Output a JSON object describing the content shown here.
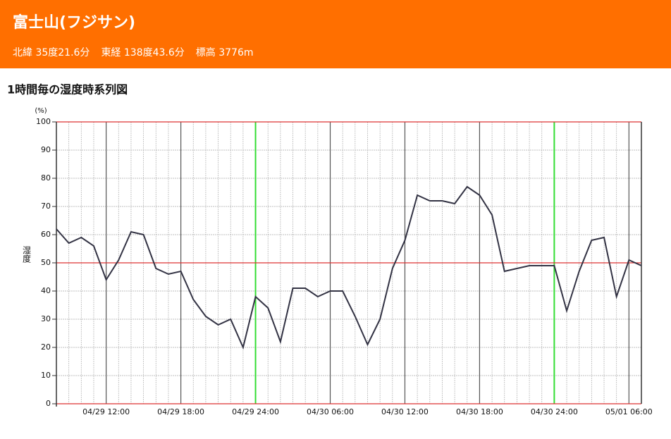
{
  "header": {
    "title": "富士山(フジサン)",
    "latitude": "北緯 35度21.6分",
    "longitude": "東経 138度43.6分",
    "elevation": "標高 3776m"
  },
  "chart_data": {
    "type": "line",
    "title": "1時間毎の湿度時系列図",
    "y_unit": "(%)",
    "ylabel": "湿度",
    "categories": [
      null,
      null,
      null,
      null,
      "04/29 12:00",
      null,
      null,
      null,
      null,
      null,
      "04/29 18:00",
      null,
      null,
      null,
      null,
      null,
      "04/29 24:00",
      null,
      null,
      null,
      null,
      null,
      "04/30 06:00",
      null,
      null,
      null,
      null,
      null,
      "04/30 12:00",
      null,
      null,
      null,
      null,
      null,
      "04/30 18:00",
      null,
      null,
      null,
      null,
      null,
      "04/30 24:00",
      null,
      null,
      null,
      null,
      null,
      "05/01 06:00",
      null
    ],
    "series": [
      {
        "name": "湿度",
        "color": "#333344",
        "values": [
          62,
          57,
          59,
          56,
          44,
          51,
          61,
          60,
          48,
          46,
          47,
          37,
          31,
          28,
          30,
          20,
          38,
          34,
          22,
          41,
          41,
          38,
          40,
          40,
          31,
          21,
          30,
          48,
          58,
          74,
          72,
          72,
          71,
          77,
          74,
          67,
          47,
          48,
          49,
          49,
          49,
          33,
          47,
          58,
          59,
          38,
          51,
          49
        ]
      }
    ],
    "ylim": [
      0,
      100
    ],
    "yticks": [
      0,
      10,
      20,
      30,
      40,
      50,
      60,
      70,
      80,
      90,
      100
    ],
    "highlight_yticks": [
      0,
      50,
      100
    ],
    "highlight_color": "#dd3333",
    "day_line_color": "#33dd33",
    "major_line_color": "#555555",
    "grid": true
  }
}
